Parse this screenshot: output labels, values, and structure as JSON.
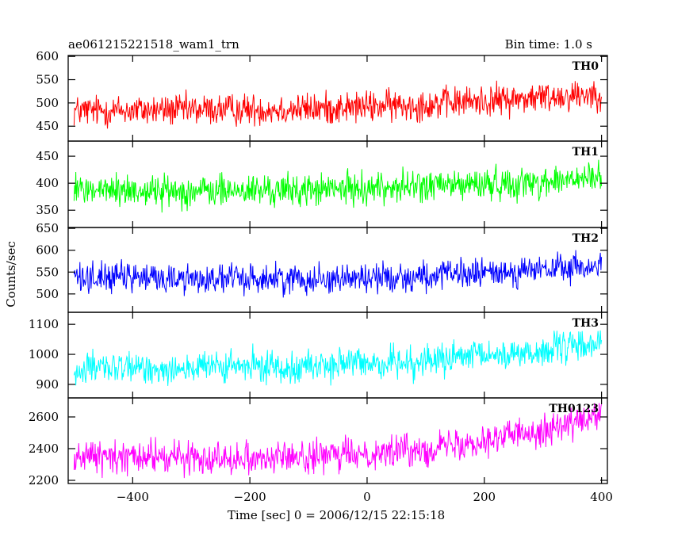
{
  "chart_data": {
    "type": "line",
    "title": "ae061215221518_wam1_trn",
    "bin_time": "Bin time: 1.0 s",
    "xlabel": "Time [sec] 0 = 2006/12/15 22:15:18",
    "ylabel": "Counts/sec",
    "xlim": [
      -510,
      410
    ],
    "x_ticks": [
      -400,
      -200,
      0,
      200,
      400
    ],
    "x_tick_labels": [
      "−400",
      "−200",
      "0",
      "200",
      "400"
    ],
    "x_range": [
      -500,
      400
    ],
    "bin_width_sec": 1.0,
    "grid": false,
    "panels": [
      {
        "name": "TH0",
        "color": "#ff0000",
        "ylim": [
          418,
          602
        ],
        "yticks": [
          450,
          500,
          550,
          600
        ],
        "baseline": [
          [
            -500,
            483
          ],
          [
            -300,
            485
          ],
          [
            -100,
            487
          ],
          [
            100,
            497
          ],
          [
            300,
            512
          ],
          [
            400,
            522
          ]
        ],
        "noise_amplitude": 32
      },
      {
        "name": "TH1",
        "color": "#00ff00",
        "ylim": [
          318,
          478
        ],
        "yticks": [
          350,
          400,
          450
        ],
        "baseline": [
          [
            -500,
            388
          ],
          [
            -300,
            385
          ],
          [
            -100,
            387
          ],
          [
            100,
            395
          ],
          [
            300,
            402
          ],
          [
            400,
            410
          ]
        ],
        "noise_amplitude": 28
      },
      {
        "name": "TH2",
        "color": "#0000ff",
        "ylim": [
          458,
          652
        ],
        "yticks": [
          500,
          550,
          600,
          650
        ],
        "baseline": [
          [
            -500,
            540
          ],
          [
            -300,
            535
          ],
          [
            -100,
            535
          ],
          [
            100,
            540
          ],
          [
            300,
            555
          ],
          [
            400,
            563
          ]
        ],
        "noise_amplitude": 32
      },
      {
        "name": "TH3",
        "color": "#00ffff",
        "ylim": [
          855,
          1140
        ],
        "yticks": [
          900,
          1000,
          1100
        ],
        "baseline": [
          [
            -500,
            950
          ],
          [
            -300,
            955
          ],
          [
            -100,
            962
          ],
          [
            100,
            978
          ],
          [
            300,
            1010
          ],
          [
            400,
            1040
          ]
        ],
        "noise_amplitude": 50
      },
      {
        "name": "TH0123",
        "color": "#ff00ff",
        "ylim": [
          2180,
          2720
        ],
        "yticks": [
          2200,
          2400,
          2600
        ],
        "baseline": [
          [
            -500,
            2350
          ],
          [
            -300,
            2345
          ],
          [
            -100,
            2345
          ],
          [
            100,
            2400
          ],
          [
            300,
            2520
          ],
          [
            400,
            2600
          ]
        ],
        "noise_amplitude": 95
      }
    ]
  }
}
